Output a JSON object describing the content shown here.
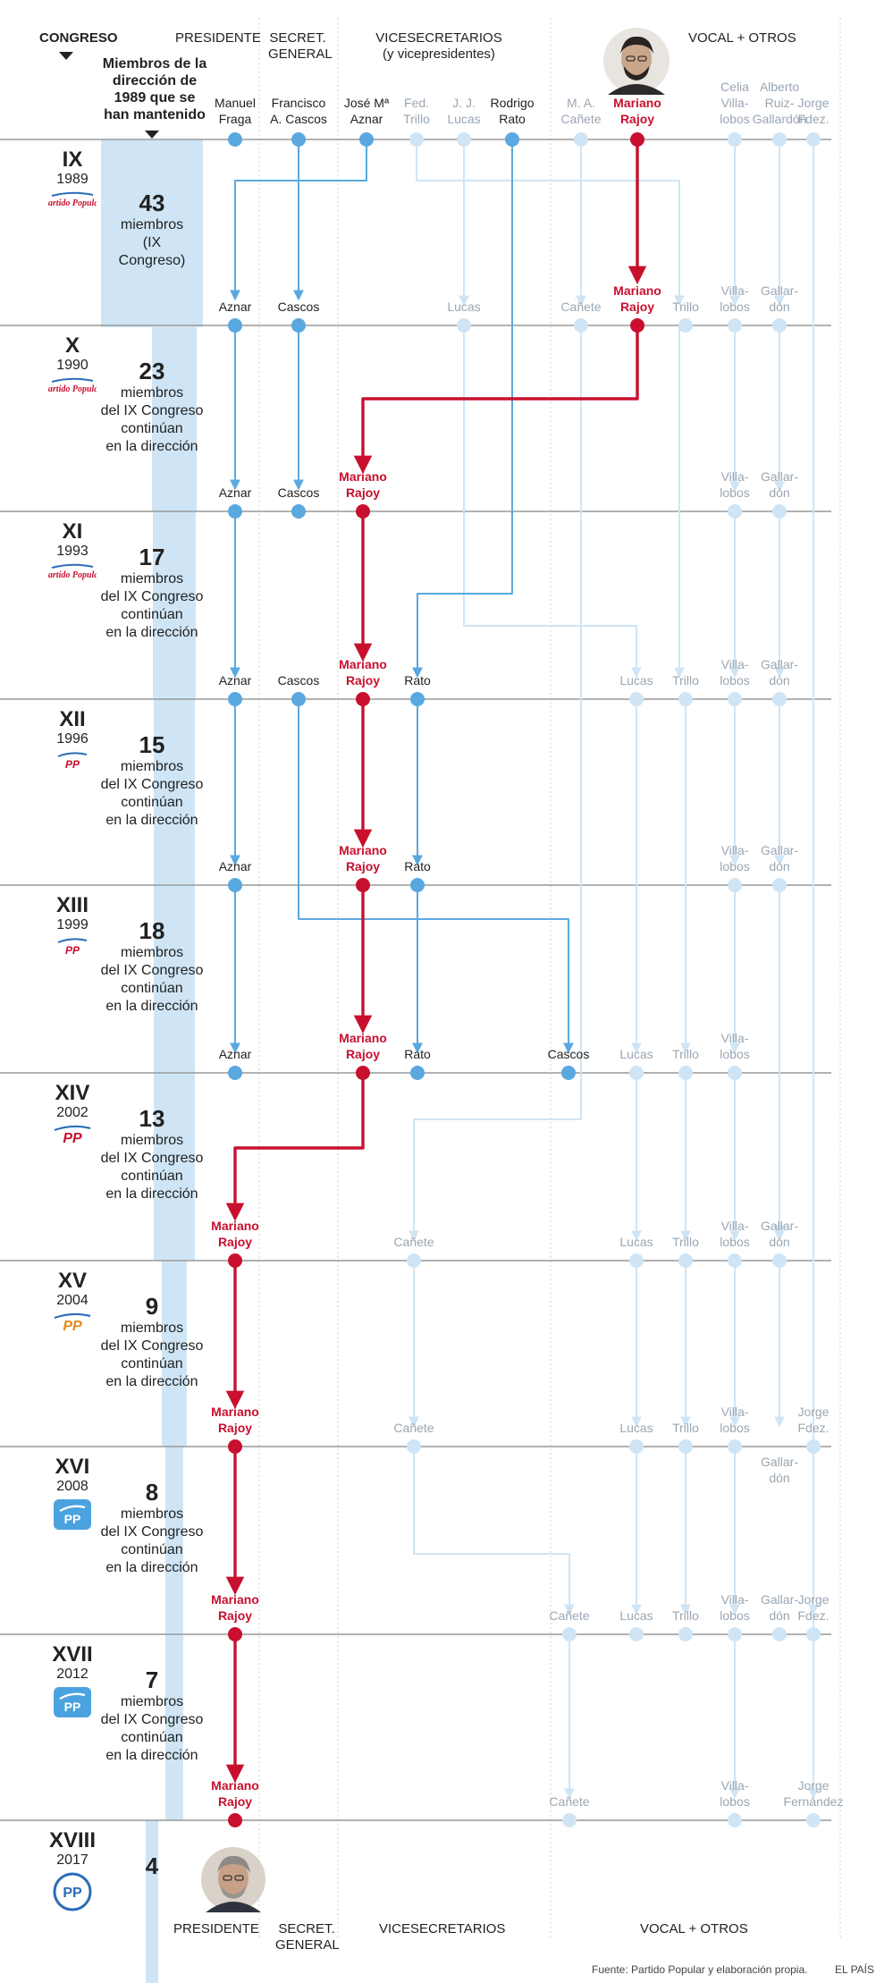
{
  "header": {
    "congreso": "CONGRESO",
    "mantenido": [
      "Miembros de la",
      "dirección de",
      "1989 que se",
      "han mantenido"
    ],
    "presidente": "PRESIDENTE",
    "secretario": [
      "SECRET.",
      "GENERAL"
    ],
    "vicesecretarios": [
      "VICESECRETARIOS",
      "(y vicepresidentes)"
    ],
    "vocal": "VOCAL + OTROS"
  },
  "founders": [
    {
      "name": [
        "Manuel",
        "Fraga"
      ],
      "red": false,
      "ghost": false
    },
    {
      "name": [
        "Francisco",
        "A. Cascos"
      ],
      "red": false,
      "ghost": false
    },
    {
      "name": [
        "José Mª",
        "Aznar"
      ],
      "red": false,
      "ghost": false
    },
    {
      "name": [
        "Fed.",
        "Trillo"
      ],
      "red": false,
      "ghost": true
    },
    {
      "name": [
        "J. J.",
        "Lucas"
      ],
      "red": false,
      "ghost": true
    },
    {
      "name": [
        "Rodrigo",
        "Rato"
      ],
      "red": false,
      "ghost": false
    },
    {
      "name": [
        "M. A.",
        "Cañete"
      ],
      "red": false,
      "ghost": true
    },
    {
      "name": [
        "Mariano",
        "Rajoy"
      ],
      "red": true,
      "ghost": false
    },
    {
      "name": [
        "Celia",
        "Villa-",
        "lobos"
      ],
      "red": false,
      "ghost": true
    },
    {
      "name": [
        "Alberto",
        "Ruiz-",
        "Gallardón"
      ],
      "red": false,
      "ghost": true
    },
    {
      "name": [
        "Jorge",
        "Fdez."
      ],
      "red": false,
      "ghost": true
    }
  ],
  "congresses": [
    {
      "roman": "IX",
      "year": "1989",
      "count": "43",
      "text": [
        "miembros",
        "(IX",
        "Congreso)"
      ],
      "logo": "pp-logo-1989"
    },
    {
      "roman": "X",
      "year": "1990",
      "count": "23",
      "text": [
        "miembros",
        "del IX Congreso",
        "continúan",
        "en la dirección"
      ],
      "logo": "pp-logo-1990"
    },
    {
      "roman": "XI",
      "year": "1993",
      "count": "17",
      "text": [
        "miembros",
        "del IX Congreso",
        "continúan",
        "en la dirección"
      ],
      "logo": "pp-logo-1993"
    },
    {
      "roman": "XII",
      "year": "1996",
      "count": "15",
      "text": [
        "miembros",
        "del IX Congreso",
        "continúan",
        "en la dirección"
      ],
      "logo": "pp-logo-1996"
    },
    {
      "roman": "XIII",
      "year": "1999",
      "count": "18",
      "text": [
        "miembros",
        "del IX Congreso",
        "continúan",
        "en la dirección"
      ],
      "logo": "pp-logo-1999"
    },
    {
      "roman": "XIV",
      "year": "2002",
      "count": "13",
      "text": [
        "miembros",
        "del IX Congreso",
        "continúan",
        "en la dirección"
      ],
      "logo": "pp-logo-2002"
    },
    {
      "roman": "XV",
      "year": "2004",
      "count": "9",
      "text": [
        "miembros",
        "del IX Congreso",
        "continúan",
        "en la dirección"
      ],
      "logo": "pp-logo-2004"
    },
    {
      "roman": "XVI",
      "year": "2008",
      "count": "8",
      "text": [
        "miembros",
        "del IX Congreso",
        "continúan",
        "en la dirección"
      ],
      "logo": "pp-logo-2008"
    },
    {
      "roman": "XVII",
      "year": "2012",
      "count": "7",
      "text": [
        "miembros",
        "del IX Congreso",
        "continúan",
        "en la dirección"
      ],
      "logo": "pp-logo-2012"
    },
    {
      "roman": "XVIII",
      "year": "2017",
      "count": "4",
      "text": [],
      "logo": "pp-logo-2017"
    }
  ],
  "placements": [
    [
      [
        "Aznar"
      ],
      [
        "Cascos"
      ],
      [
        "Lucas"
      ],
      [
        "Cañete"
      ],
      [
        "Mariano",
        "Rajoy"
      ],
      [
        "Trillo"
      ],
      [
        "Villa-",
        "lobos"
      ],
      [
        "Gallar-",
        "dón"
      ]
    ],
    [
      [
        "Aznar"
      ],
      [
        "Cascos"
      ],
      [
        "Mariano",
        "Rajoy"
      ],
      [
        "Villa-",
        "lobos"
      ],
      [
        "Gallar-",
        "dón"
      ]
    ],
    [
      [
        "Aznar"
      ],
      [
        "Cascos"
      ],
      [
        "Mariano",
        "Rajoy"
      ],
      [
        "Rato"
      ],
      [
        "Lucas"
      ],
      [
        "Trillo"
      ],
      [
        "Villa-",
        "lobos"
      ],
      [
        "Gallar-",
        "dón"
      ]
    ],
    [
      [
        "Aznar"
      ],
      [
        "Mariano",
        "Rajoy"
      ],
      [
        "Rato"
      ],
      [
        "Villa-",
        "lobos"
      ],
      [
        "Gallar-",
        "dón"
      ]
    ],
    [
      [
        "Aznar"
      ],
      [
        "Mariano",
        "Rajoy"
      ],
      [
        "Rato"
      ],
      [
        "Cascos"
      ],
      [
        "Lucas"
      ],
      [
        "Trillo"
      ],
      [
        "Villa-",
        "lobos"
      ]
    ],
    [
      [
        "Mariano",
        "Rajoy"
      ],
      [
        "Cañete"
      ],
      [
        "Lucas"
      ],
      [
        "Trillo"
      ],
      [
        "Villa-",
        "lobos"
      ],
      [
        "Gallar-",
        "dón"
      ]
    ],
    [
      [
        "Mariano",
        "Rajoy"
      ],
      [
        "Cañete"
      ],
      [
        "Lucas"
      ],
      [
        "Trillo"
      ],
      [
        "Villa-",
        "lobos"
      ],
      [
        "Jorge",
        "Fdez."
      ],
      [
        "Gallar-",
        "dón"
      ]
    ],
    [
      [
        "Mariano",
        "Rajoy"
      ],
      [
        "Cañete"
      ],
      [
        "Lucas"
      ],
      [
        "Trillo"
      ],
      [
        "Villa-",
        "lobos"
      ],
      [
        "Gallar-",
        "dón"
      ],
      [
        "Jorge",
        "Fdez."
      ]
    ],
    [
      [
        "Mariano",
        "Rajoy"
      ],
      [
        "Cañete"
      ],
      [
        "Villa-",
        "lobos"
      ],
      [
        "Jorge",
        "Fernández"
      ]
    ]
  ],
  "footer": {
    "presidente": "PRESIDENTE",
    "secretario": [
      "SECRET.",
      "GENERAL"
    ],
    "vicesecretarios": "VICESECRETARIOS",
    "vocal": "VOCAL + OTROS",
    "source": "Fuente: Partido Popular y elaboración propia.",
    "credit": "EL PAÍS"
  },
  "icons": {
    "founder_photo": "rajoy-1989-portrait",
    "bottom_photo": "rajoy-2017-portrait",
    "dropdown": "triangle-down-icon"
  },
  "colors": {
    "blue": "#5aa8e0",
    "light": "#cfe5f5",
    "red": "#c8102e",
    "bar": "#cfe5f5",
    "divider": "#999999",
    "ghosttext": "#9aa6b2"
  }
}
